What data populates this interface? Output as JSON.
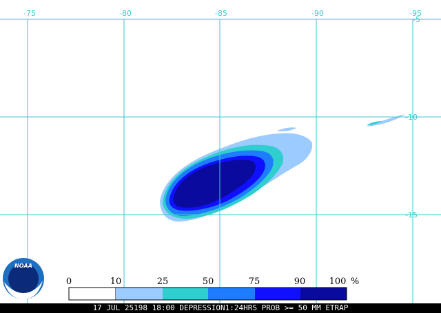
{
  "map": {
    "longitude_labels": [
      "-75",
      "-80",
      "-85",
      "-90",
      "-95"
    ],
    "latitude_labels": [
      "-5",
      "-10",
      "-15"
    ],
    "gridline_color": "#3ec6d6"
  },
  "logo": {
    "text": "NOAA",
    "colors": {
      "outer": "#1f6fc0",
      "inner": "#0b2a7a",
      "wave": "#ffffff"
    }
  },
  "legend": {
    "labels": [
      "0",
      "10",
      "25",
      "50",
      "75",
      "90",
      "100",
      "%"
    ],
    "colors": [
      "#ffffff",
      "#9ccbff",
      "#2fcfcf",
      "#1e7cff",
      "#1010ff",
      "#0a0a9e"
    ]
  },
  "caption": "17 JUL 25198 18:00 DEPRESSION1:24HRS PROB >= 50 MM ETRAP",
  "probability_colors": {
    "p10": "#9ccbff",
    "p25": "#2fcfcf",
    "p50": "#1e7cff",
    "p75": "#1010ff",
    "p90": "#0a0a9e"
  }
}
